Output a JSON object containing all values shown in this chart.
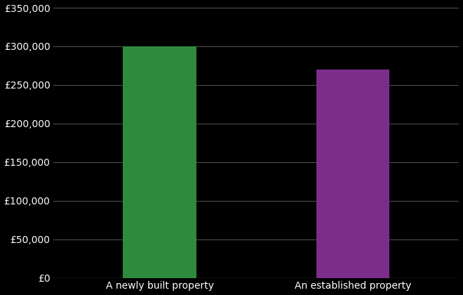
{
  "categories": [
    "A newly built property",
    "An established property"
  ],
  "values": [
    300000,
    270000
  ],
  "bar_colors": [
    "#2e8b3e",
    "#7b2d8b"
  ],
  "background_color": "#000000",
  "text_color": "#ffffff",
  "grid_color": "#555555",
  "ylim": [
    0,
    350000
  ],
  "yticks": [
    0,
    50000,
    100000,
    150000,
    200000,
    250000,
    300000,
    350000
  ],
  "bar_width": 0.38,
  "x_positions": [
    0,
    1
  ],
  "xlim": [
    -0.55,
    1.55
  ],
  "xlabel": "",
  "ylabel": "",
  "tick_fontsize": 10,
  "label_fontsize": 10
}
